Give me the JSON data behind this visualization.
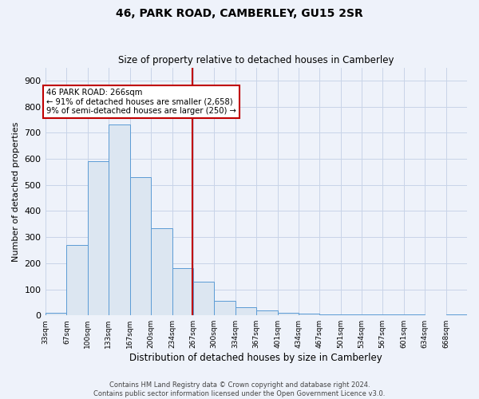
{
  "title": "46, PARK ROAD, CAMBERLEY, GU15 2SR",
  "subtitle": "Size of property relative to detached houses in Camberley",
  "xlabel": "Distribution of detached houses by size in Camberley",
  "ylabel": "Number of detached properties",
  "property_label": "46 PARK ROAD: 266sqm",
  "annotation_line1": "← 91% of detached houses are smaller (2,658)",
  "annotation_line2": "9% of semi-detached houses are larger (250) →",
  "bar_edges": [
    33,
    67,
    100,
    133,
    167,
    200,
    234,
    267,
    300,
    334,
    367,
    401,
    434,
    467,
    501,
    534,
    567,
    601,
    634,
    668,
    701
  ],
  "bar_heights": [
    10,
    270,
    590,
    730,
    530,
    335,
    180,
    130,
    55,
    30,
    20,
    10,
    8,
    5,
    5,
    5,
    3,
    3,
    0,
    5,
    0
  ],
  "bar_facecolor": "#dce6f1",
  "bar_edgecolor": "#5b9bd5",
  "vline_color": "#c00000",
  "vline_x": 266,
  "annotation_box_edgecolor": "#c00000",
  "annotation_box_facecolor": "#ffffff",
  "grid_color": "#c8d4e8",
  "background_color": "#eef2fa",
  "ylim": [
    0,
    950
  ],
  "yticks": [
    0,
    100,
    200,
    300,
    400,
    500,
    600,
    700,
    800,
    900
  ],
  "footer_line1": "Contains HM Land Registry data © Crown copyright and database right 2024.",
  "footer_line2": "Contains public sector information licensed under the Open Government Licence v3.0."
}
